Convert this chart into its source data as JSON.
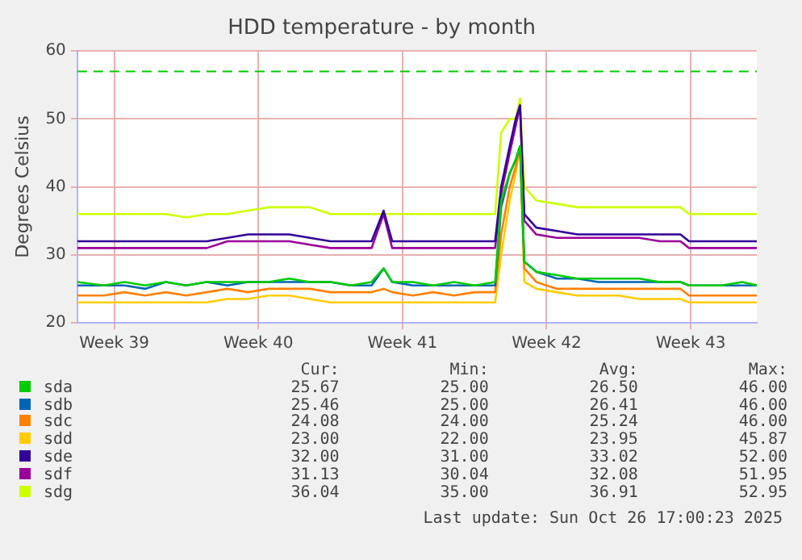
{
  "chart_data": {
    "type": "line",
    "title": "HDD temperature - by month",
    "ylabel": "Degrees Celsius",
    "x": [
      "2025-09-23T17:00",
      "2025-09-25",
      "2025-09-26",
      "2025-09-27",
      "2025-09-28",
      "2025-09-29",
      "2025-09-30",
      "2025-10-01",
      "2025-10-02",
      "2025-10-03",
      "2025-10-04",
      "2025-10-05",
      "2025-10-06",
      "2025-10-07",
      "2025-10-08",
      "2025-10-08T14:00",
      "2025-10-09",
      "2025-10-10",
      "2025-10-11",
      "2025-10-12",
      "2025-10-13",
      "2025-10-14",
      "2025-10-14T07:00",
      "2025-10-14T17:00",
      "2025-10-15",
      "2025-10-15T05:00",
      "2025-10-15T10:00",
      "2025-10-16",
      "2025-10-17",
      "2025-10-18",
      "2025-10-19",
      "2025-10-20",
      "2025-10-21",
      "2025-10-22",
      "2025-10-23",
      "2025-10-23T10:00",
      "2025-10-24",
      "2025-10-25",
      "2025-10-26",
      "2025-10-26T17:00"
    ],
    "xlim": [
      "2025-09-23T17:00",
      "2025-10-26T17:00"
    ],
    "xticks": [
      {
        "value": "2025-09-25T12:00",
        "label": "Week 39"
      },
      {
        "value": "2025-10-02T12:00",
        "label": "Week 40"
      },
      {
        "value": "2025-10-09T12:00",
        "label": "Week 41"
      },
      {
        "value": "2025-10-16T12:00",
        "label": "Week 42"
      },
      {
        "value": "2025-10-23T12:00",
        "label": "Week 43"
      }
    ],
    "ylim": [
      20,
      60
    ],
    "yticks": [
      20,
      30,
      40,
      50,
      60
    ],
    "grid": true,
    "legend": "bottom",
    "marker": "none",
    "line_style": "solid",
    "ref_lines": [
      {
        "axis": "y",
        "value": 57,
        "color": "#00cc00",
        "line_style": "dashed"
      }
    ],
    "series": [
      {
        "name": "sda",
        "color": "#00cc00",
        "values": [
          26,
          25.5,
          26,
          25.5,
          26,
          25.5,
          26,
          26,
          26,
          26,
          26.5,
          26,
          26,
          25.5,
          26,
          28,
          26,
          26,
          25.5,
          26,
          25.5,
          26,
          38,
          42,
          44,
          46,
          29,
          27.5,
          27,
          26.5,
          26.5,
          26.5,
          26.5,
          26,
          26,
          25.5,
          25.5,
          25.5,
          26,
          25.5
        ]
      },
      {
        "name": "sdb",
        "color": "#0066b3",
        "values": [
          25.5,
          25.5,
          25.5,
          25,
          26,
          25.5,
          26,
          25.5,
          26,
          26,
          26,
          26,
          26,
          25.5,
          25.5,
          28,
          26,
          25.5,
          25.5,
          25.5,
          25.5,
          25.5,
          37,
          42,
          44,
          46,
          29,
          27.5,
          26.5,
          26.5,
          26,
          26,
          26,
          26,
          26,
          25.5,
          25.5,
          25.5,
          25.5,
          25.5
        ]
      },
      {
        "name": "sdc",
        "color": "#ff8000",
        "values": [
          24,
          24,
          24.5,
          24,
          24.5,
          24,
          24.5,
          25,
          24.5,
          25,
          25,
          25,
          24.5,
          24.5,
          24.5,
          25,
          24.5,
          24,
          24.5,
          24,
          24.5,
          24.5,
          33,
          40,
          43,
          46,
          28,
          26,
          25,
          25,
          25,
          25,
          25,
          25,
          25,
          24,
          24,
          24,
          24,
          24
        ]
      },
      {
        "name": "sdd",
        "color": "#ffcc00",
        "values": [
          23,
          23,
          23,
          23,
          23,
          23,
          23,
          23.5,
          23.5,
          24,
          24,
          23.5,
          23,
          23,
          23,
          23,
          23,
          23,
          23,
          23,
          23,
          23,
          30,
          38,
          42,
          46,
          26,
          25,
          24.5,
          24,
          24,
          24,
          23.5,
          23.5,
          23.5,
          23,
          23,
          23,
          23,
          23
        ]
      },
      {
        "name": "sde",
        "color": "#330099",
        "values": [
          32,
          32,
          32,
          32,
          32,
          32,
          32,
          32.5,
          33,
          33,
          33,
          32.5,
          32,
          32,
          32,
          36.5,
          32,
          32,
          32,
          32,
          32,
          32,
          40,
          46,
          50,
          52,
          36,
          34,
          33.5,
          33,
          33,
          33,
          33,
          33,
          33,
          32,
          32,
          32,
          32,
          32
        ]
      },
      {
        "name": "sdf",
        "color": "#990099",
        "values": [
          31,
          31,
          31,
          31,
          31,
          31,
          31,
          32,
          32,
          32,
          32,
          31.5,
          31,
          31,
          31,
          36,
          31,
          31,
          31,
          31,
          31,
          31,
          39,
          45,
          49,
          52,
          35,
          33,
          32.5,
          32.5,
          32.5,
          32.5,
          32.5,
          32,
          32,
          31,
          31,
          31,
          31,
          31
        ]
      },
      {
        "name": "sdg",
        "color": "#ccff00",
        "values": [
          36,
          36,
          36,
          36,
          36,
          35.5,
          36,
          36,
          36.5,
          37,
          37,
          37,
          36,
          36,
          36,
          36,
          36,
          36,
          36,
          36,
          36,
          36,
          48,
          50,
          50,
          53,
          40,
          38,
          37.5,
          37,
          37,
          37,
          37,
          37,
          37,
          36,
          36,
          36,
          36,
          36
        ]
      }
    ],
    "annotations": [
      "Cur:",
      "Min:",
      "Avg:",
      "Max:",
      "25.67",
      "25.00",
      "26.50",
      "46.00",
      "25.46",
      "25.00",
      "26.41",
      "46.00",
      "24.08",
      "24.00",
      "25.24",
      "46.00",
      "23.00",
      "22.00",
      "23.95",
      "45.87",
      "32.00",
      "31.00",
      "33.02",
      "52.00",
      "31.13",
      "30.04",
      "32.08",
      "51.95",
      "36.04",
      "35.00",
      "36.91",
      "52.95",
      "Last update: Sun Oct 26 17:00:23 2025"
    ]
  }
}
